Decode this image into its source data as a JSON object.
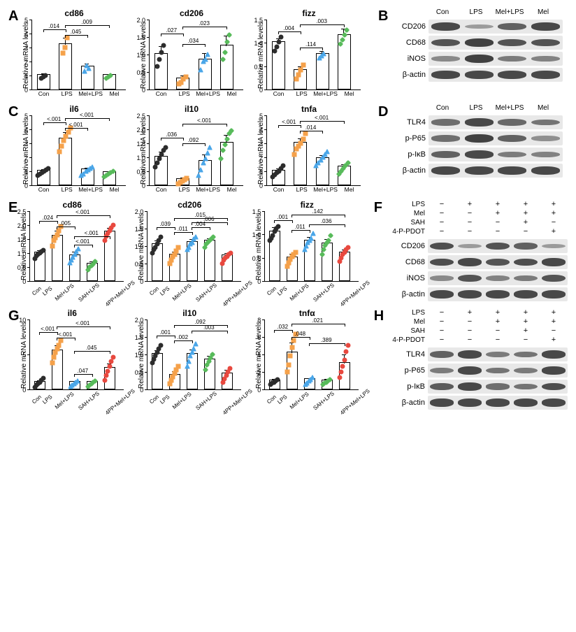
{
  "ylabel": "Relative mRNA levels",
  "groups4": [
    "Con",
    "LPS",
    "Mel+LPS",
    "Mel"
  ],
  "groups5": [
    "Con",
    "LPS",
    "Mel+LPS",
    "SAH+LPS",
    "4PP+Mel+LPS"
  ],
  "colors4": [
    "#2c2c2c",
    "#f5a14a",
    "#4aa6e8",
    "#58bb5b"
  ],
  "colors5": [
    "#2c2c2c",
    "#f5a14a",
    "#4aa6e8",
    "#58bb5b",
    "#e8493f"
  ],
  "markers4": [
    "circle",
    "square",
    "triangle",
    "diamond"
  ],
  "markers5": [
    "circle",
    "square",
    "triangle",
    "diamond",
    "circle"
  ],
  "A": {
    "cd86": {
      "title": "cd86",
      "ylim": 5,
      "step": 1,
      "bars": [
        1.0,
        3.2,
        1.6,
        1.0
      ],
      "errs": [
        0.15,
        0.5,
        0.25,
        0.1
      ],
      "points": [
        [
          0.9,
          1.0,
          1.1
        ],
        [
          2.7,
          3.1,
          3.8
        ],
        [
          1.4,
          1.8,
          1.6
        ],
        [
          0.9,
          1.0,
          1.1
        ]
      ],
      "sigs": [
        {
          "a": 0,
          "b": 1,
          "y": 4.3,
          "t": ".014"
        },
        {
          "a": 1,
          "b": 2,
          "y": 3.9,
          "t": ".045"
        },
        {
          "a": 1,
          "b": 3,
          "y": 4.6,
          "t": ".009"
        }
      ]
    },
    "cd206": {
      "title": "cd206",
      "ylim": 2,
      "step": 0.5,
      "bars": [
        1.0,
        0.3,
        0.85,
        1.25
      ],
      "errs": [
        0.25,
        0.1,
        0.2,
        0.3
      ],
      "points": [
        [
          0.7,
          0.9,
          1.1,
          1.3
        ],
        [
          0.2,
          0.25,
          0.35,
          0.4
        ],
        [
          0.6,
          0.85,
          0.9,
          1.05
        ],
        [
          0.9,
          1.1,
          1.4,
          1.6
        ]
      ],
      "sigs": [
        {
          "a": 0,
          "b": 1,
          "y": 1.6,
          "t": ".027"
        },
        {
          "a": 1,
          "b": 2,
          "y": 1.3,
          "t": ".034"
        },
        {
          "a": 1,
          "b": 3,
          "y": 1.8,
          "t": ".023"
        }
      ]
    },
    "fizz": {
      "title": "fizz",
      "ylim": 1.5,
      "step": 0.5,
      "bars": [
        1.0,
        0.4,
        0.75,
        1.15
      ],
      "errs": [
        0.1,
        0.1,
        0.08,
        0.15
      ],
      "points": [
        [
          0.85,
          0.95,
          1.05,
          1.15
        ],
        [
          0.25,
          0.35,
          0.45,
          0.55
        ],
        [
          0.7,
          0.75,
          0.8
        ],
        [
          1.0,
          1.1,
          1.2,
          1.3
        ]
      ],
      "sigs": [
        {
          "a": 0,
          "b": 1,
          "y": 1.25,
          "t": ".004"
        },
        {
          "a": 1,
          "b": 2,
          "y": 0.9,
          "t": ".114"
        },
        {
          "a": 1,
          "b": 3,
          "y": 1.4,
          "t": ".003"
        }
      ]
    }
  },
  "C": {
    "il6": {
      "title": "il6",
      "ylim": 5,
      "step": 1,
      "bars": [
        1.0,
        3.3,
        1.1,
        0.9
      ],
      "errs": [
        0.15,
        0.5,
        0.15,
        0.1
      ],
      "points": [
        [
          0.8,
          0.9,
          1.0,
          1.1,
          1.2,
          1.3
        ],
        [
          2.5,
          2.9,
          3.3,
          3.6,
          3.9,
          4.2
        ],
        [
          0.8,
          0.9,
          1.1,
          1.2,
          1.3,
          1.4
        ],
        [
          0.7,
          0.8,
          0.9,
          1.0,
          1.1
        ]
      ],
      "sigs": [
        {
          "a": 0,
          "b": 1,
          "y": 4.5,
          "t": "<.001"
        },
        {
          "a": 1,
          "b": 2,
          "y": 4.1,
          "t": "<.001"
        },
        {
          "a": 1,
          "b": 3,
          "y": 4.8,
          "t": "<.001"
        }
      ]
    },
    "il10": {
      "title": "il10",
      "ylim": 2.5,
      "step": 0.5,
      "bars": [
        1.0,
        0.2,
        0.85,
        1.5
      ],
      "errs": [
        0.2,
        0.08,
        0.25,
        0.3
      ],
      "points": [
        [
          0.7,
          0.85,
          1.0,
          1.15,
          1.3,
          1.4
        ],
        [
          0.1,
          0.15,
          0.2,
          0.25,
          0.3
        ],
        [
          0.4,
          0.6,
          0.85,
          1.0,
          1.2,
          1.4
        ],
        [
          1.0,
          1.3,
          1.5,
          1.7,
          1.9,
          2.0
        ]
      ],
      "sigs": [
        {
          "a": 0,
          "b": 1,
          "y": 1.7,
          "t": ".036"
        },
        {
          "a": 1,
          "b": 2,
          "y": 1.5,
          "t": ".092"
        },
        {
          "a": 1,
          "b": 3,
          "y": 2.2,
          "t": "<.001"
        }
      ]
    },
    "tnfa": {
      "title": "tnfa",
      "ylim": 5,
      "step": 1,
      "bars": [
        1.0,
        3.0,
        1.9,
        1.3
      ],
      "errs": [
        0.2,
        0.35,
        0.25,
        0.2
      ],
      "points": [
        [
          0.7,
          0.85,
          1.0,
          1.1,
          1.3,
          1.5
        ],
        [
          2.3,
          2.7,
          2.9,
          3.1,
          3.4,
          3.8
        ],
        [
          1.5,
          1.7,
          1.9,
          2.1,
          2.3,
          2.5
        ],
        [
          0.9,
          1.1,
          1.3,
          1.5,
          1.7
        ]
      ],
      "sigs": [
        {
          "a": 0,
          "b": 1,
          "y": 4.3,
          "t": "<.001"
        },
        {
          "a": 1,
          "b": 2,
          "y": 3.9,
          "t": ".014"
        },
        {
          "a": 1,
          "b": 3,
          "y": 4.6,
          "t": "<.001"
        }
      ]
    }
  },
  "E": {
    "cd86": {
      "title": "cd86",
      "ylim": 2.5,
      "step": 0.5,
      "bars": [
        1.0,
        1.6,
        0.9,
        0.6,
        1.75
      ],
      "errs": [
        0.1,
        0.2,
        0.15,
        0.1,
        0.15
      ],
      "points": [
        [
          0.85,
          0.95,
          1.0,
          1.05,
          1.1,
          1.15
        ],
        [
          1.3,
          1.5,
          1.6,
          1.7,
          1.85,
          2.0
        ],
        [
          0.7,
          0.8,
          0.9,
          1.0,
          1.1,
          1.2
        ],
        [
          0.45,
          0.55,
          0.6,
          0.65,
          0.75
        ],
        [
          1.5,
          1.65,
          1.75,
          1.85,
          1.95,
          2.05
        ]
      ],
      "sigs": [
        {
          "a": 0,
          "b": 1,
          "y": 2.15,
          "t": ".024"
        },
        {
          "a": 1,
          "b": 2,
          "y": 1.95,
          "t": ".005"
        },
        {
          "a": 1,
          "b": 4,
          "y": 2.35,
          "t": "<.001"
        },
        {
          "a": 2,
          "b": 3,
          "y": 1.3,
          "t": "<.001"
        },
        {
          "a": 2,
          "b": 4,
          "y": 1.6,
          "t": "<.001"
        }
      ]
    },
    "cd206": {
      "title": "cd206",
      "ylim": 2.0,
      "step": 0.5,
      "bars": [
        1.05,
        0.75,
        1.1,
        1.15,
        0.72
      ],
      "errs": [
        0.12,
        0.1,
        0.1,
        0.08,
        0.08
      ],
      "points": [
        [
          0.85,
          0.95,
          1.0,
          1.1,
          1.2,
          1.3
        ],
        [
          0.55,
          0.65,
          0.75,
          0.8,
          0.9,
          1.0
        ],
        [
          0.95,
          1.0,
          1.1,
          1.15,
          1.25,
          1.3
        ],
        [
          1.0,
          1.1,
          1.15,
          1.2,
          1.25,
          1.3
        ],
        [
          0.55,
          0.65,
          0.7,
          0.75,
          0.8,
          0.85
        ]
      ],
      "sigs": [
        {
          "a": 0,
          "b": 1,
          "y": 1.55,
          "t": ".039"
        },
        {
          "a": 1,
          "b": 2,
          "y": 1.4,
          "t": ".011"
        },
        {
          "a": 1,
          "b": 4,
          "y": 1.8,
          "t": ".015"
        },
        {
          "a": 2,
          "b": 3,
          "y": 1.55,
          "t": ".004"
        },
        {
          "a": 2,
          "b": 4,
          "y": 1.68,
          "t": ".006"
        }
      ]
    },
    "fizz": {
      "title": "fizz",
      "ylim": 1.5,
      "step": 0.5,
      "bars": [
        1.05,
        0.5,
        0.85,
        0.8,
        0.6
      ],
      "errs": [
        0.1,
        0.08,
        0.1,
        0.1,
        0.08
      ],
      "points": [
        [
          0.9,
          0.95,
          1.0,
          1.1,
          1.15,
          1.2
        ],
        [
          0.35,
          0.42,
          0.5,
          0.55,
          0.6,
          0.65
        ],
        [
          0.7,
          0.78,
          0.85,
          0.9,
          0.95,
          1.05
        ],
        [
          0.6,
          0.7,
          0.8,
          0.85,
          0.9,
          1.0
        ],
        [
          0.45,
          0.52,
          0.6,
          0.65,
          0.7,
          0.75
        ]
      ],
      "sigs": [
        {
          "a": 0,
          "b": 1,
          "y": 1.3,
          "t": ".001"
        },
        {
          "a": 1,
          "b": 2,
          "y": 1.1,
          "t": ".011"
        },
        {
          "a": 1,
          "b": 4,
          "y": 1.42,
          "t": ".142"
        },
        {
          "a": 2,
          "b": 4,
          "y": 1.22,
          "t": ".036"
        }
      ]
    }
  },
  "G": {
    "il6": {
      "title": "il6",
      "ylim": 10,
      "step": 5,
      "bars": [
        1.0,
        5.5,
        1.0,
        1.0,
        3.0
      ],
      "errs": [
        0.3,
        0.8,
        0.2,
        0.2,
        0.7
      ],
      "points": [
        [
          0.5,
          0.8,
          1.0,
          1.2,
          1.5,
          1.8
        ],
        [
          4.0,
          4.8,
          5.5,
          6.0,
          6.5,
          7.2
        ],
        [
          0.6,
          0.8,
          1.0,
          1.2,
          1.4
        ],
        [
          0.6,
          0.8,
          1.0,
          1.2,
          1.4
        ],
        [
          1.5,
          2.2,
          2.8,
          3.5,
          4.2,
          4.8
        ]
      ],
      "sigs": [
        {
          "a": 0,
          "b": 1,
          "y": 8.2,
          "t": "<.001"
        },
        {
          "a": 1,
          "b": 2,
          "y": 7.4,
          "t": "<.001"
        },
        {
          "a": 1,
          "b": 4,
          "y": 9.0,
          "t": "<.001"
        },
        {
          "a": 2,
          "b": 3,
          "y": 2.2,
          "t": ".047"
        },
        {
          "a": 2,
          "b": 4,
          "y": 5.5,
          "t": ".045"
        }
      ]
    },
    "il10": {
      "title": "il10",
      "ylim": 2.0,
      "step": 0.5,
      "bars": [
        1.0,
        0.4,
        1.0,
        0.85,
        0.45
      ],
      "errs": [
        0.12,
        0.12,
        0.15,
        0.12,
        0.12
      ],
      "points": [
        [
          0.8,
          0.9,
          1.0,
          1.1,
          1.2,
          1.3
        ],
        [
          0.2,
          0.3,
          0.4,
          0.5,
          0.6,
          0.7
        ],
        [
          0.7,
          0.85,
          1.0,
          1.1,
          1.2,
          1.35
        ],
        [
          0.6,
          0.75,
          0.85,
          0.95,
          1.05
        ],
        [
          0.25,
          0.35,
          0.45,
          0.55,
          0.65
        ]
      ],
      "sigs": [
        {
          "a": 0,
          "b": 1,
          "y": 1.55,
          "t": ".001"
        },
        {
          "a": 1,
          "b": 2,
          "y": 1.4,
          "t": ".002"
        },
        {
          "a": 1,
          "b": 4,
          "y": 1.85,
          "t": ".092"
        },
        {
          "a": 2,
          "b": 4,
          "y": 1.68,
          "t": ".003"
        }
      ]
    },
    "tnfa": {
      "title": "tnfα",
      "ylim": 8,
      "step": 2,
      "bars": [
        1.0,
        4.2,
        1.1,
        1.0,
        3.0
      ],
      "errs": [
        0.2,
        1.2,
        0.2,
        0.2,
        1.0
      ],
      "points": [
        [
          0.7,
          0.85,
          1.0,
          1.1,
          1.3
        ],
        [
          2.2,
          3.0,
          4.0,
          5.0,
          5.8,
          6.5
        ],
        [
          0.7,
          0.9,
          1.1,
          1.3,
          1.5
        ],
        [
          0.7,
          0.85,
          1.0,
          1.15,
          1.3
        ],
        [
          1.5,
          2.2,
          2.8,
          3.5,
          4.5,
          5.2
        ]
      ],
      "sigs": [
        {
          "a": 0,
          "b": 1,
          "y": 6.8,
          "t": ".032"
        },
        {
          "a": 1,
          "b": 2,
          "y": 6.0,
          "t": ".048"
        },
        {
          "a": 1,
          "b": 4,
          "y": 7.5,
          "t": ".021"
        },
        {
          "a": 2,
          "b": 4,
          "y": 5.3,
          "t": ".389"
        }
      ]
    }
  },
  "B": {
    "header": [
      "Con",
      "LPS",
      "Mel+LPS",
      "Mel"
    ],
    "rows": [
      {
        "label": "CD206",
        "intensities": [
          0.9,
          0.25,
          0.7,
          0.9
        ]
      },
      {
        "label": "CD68",
        "intensities": [
          0.8,
          0.95,
          0.8,
          0.8
        ]
      },
      {
        "label": "iNOS",
        "intensities": [
          0.4,
          0.95,
          0.5,
          0.45
        ]
      },
      {
        "label": "β-actin",
        "intensities": [
          0.9,
          0.9,
          0.9,
          0.9
        ]
      }
    ]
  },
  "D": {
    "header": [
      "Con",
      "LPS",
      "Mel+LPS",
      "Mel"
    ],
    "rows": [
      {
        "label": "TLR4",
        "intensities": [
          0.6,
          0.9,
          0.65,
          0.55
        ]
      },
      {
        "label": "p-P65",
        "intensities": [
          0.6,
          0.95,
          0.7,
          0.35
        ]
      },
      {
        "label": "p-IκB",
        "intensities": [
          0.7,
          0.9,
          0.5,
          0.45
        ]
      },
      {
        "label": "β-actin",
        "intensities": [
          0.9,
          0.9,
          0.9,
          0.9
        ]
      }
    ]
  },
  "F": {
    "pmheader": [
      {
        "label": "LPS",
        "vals": [
          "−",
          "+",
          "+",
          "+",
          "+"
        ]
      },
      {
        "label": "Mel",
        "vals": [
          "−",
          "−",
          "+",
          "+",
          "+"
        ]
      },
      {
        "label": "SAH",
        "vals": [
          "−",
          "−",
          "−",
          "+",
          "−"
        ]
      },
      {
        "label": "4-P-PDOT",
        "vals": [
          "−",
          "−",
          "−",
          "−",
          "+"
        ]
      }
    ],
    "rows": [
      {
        "label": "CD206",
        "intensities": [
          0.85,
          0.25,
          0.8,
          0.7,
          0.25
        ]
      },
      {
        "label": "CD68",
        "intensities": [
          0.85,
          0.9,
          0.8,
          0.85,
          0.9
        ]
      },
      {
        "label": "iNOS",
        "intensities": [
          0.4,
          0.8,
          0.45,
          0.5,
          0.8
        ]
      },
      {
        "label": "β-actin",
        "intensities": [
          0.9,
          0.9,
          0.9,
          0.9,
          0.9
        ]
      }
    ]
  },
  "H": {
    "pmheader": [
      {
        "label": "LPS",
        "vals": [
          "−",
          "+",
          "+",
          "+",
          "+"
        ]
      },
      {
        "label": "Mel",
        "vals": [
          "−",
          "−",
          "+",
          "+",
          "+"
        ]
      },
      {
        "label": "SAH",
        "vals": [
          "−",
          "−",
          "−",
          "+",
          "−"
        ]
      },
      {
        "label": "4-P-PDOT",
        "vals": [
          "−",
          "−",
          "−",
          "−",
          "+"
        ]
      }
    ],
    "rows": [
      {
        "label": "TLR4",
        "intensities": [
          0.7,
          0.9,
          0.5,
          0.55,
          0.9
        ]
      },
      {
        "label": "p-P65",
        "intensities": [
          0.5,
          0.9,
          0.55,
          0.5,
          0.9
        ]
      },
      {
        "label": "p-IκB",
        "intensities": [
          0.75,
          0.9,
          0.6,
          0.55,
          0.85
        ]
      },
      {
        "label": "β-actin",
        "intensities": [
          0.9,
          0.9,
          0.9,
          0.9,
          0.9
        ]
      }
    ]
  }
}
